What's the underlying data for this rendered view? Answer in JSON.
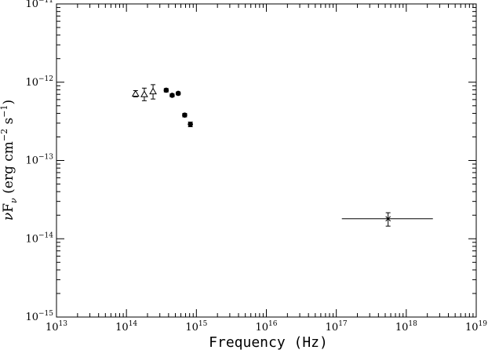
{
  "chart_data": {
    "type": "scatter",
    "title": "",
    "xlabel": "Frequency (Hz)",
    "ylabel": "νFν (erg cm⁻² s⁻¹)",
    "x_scale": "log",
    "y_scale": "log",
    "xlim": [
      10000000000000.0,
      1e+19
    ],
    "ylim": [
      1e-15,
      1e-11
    ],
    "x_ticks": [
      {
        "value": 10000000000000.0,
        "base": "10",
        "exp": "13"
      },
      {
        "value": 100000000000000.0,
        "base": "10",
        "exp": "14"
      },
      {
        "value": 1000000000000000.0,
        "base": "10",
        "exp": "15"
      },
      {
        "value": 1e+16,
        "base": "10",
        "exp": "16"
      },
      {
        "value": 1e+17,
        "base": "10",
        "exp": "17"
      },
      {
        "value": 1e+18,
        "base": "10",
        "exp": "18"
      },
      {
        "value": 1e+19,
        "base": "10",
        "exp": "19"
      }
    ],
    "y_ticks": [
      {
        "value": 1e-15,
        "base": "10",
        "exp": "−15"
      },
      {
        "value": 1e-14,
        "base": "10",
        "exp": "−14"
      },
      {
        "value": 1e-13,
        "base": "10",
        "exp": "−13"
      },
      {
        "value": 1e-12,
        "base": "10",
        "exp": "−12"
      },
      {
        "value": 1e-11,
        "base": "10",
        "exp": "−11"
      }
    ],
    "grid": false,
    "series": [
      {
        "marker": "open-triangle",
        "points": [
          {
            "x": 135000000000000.0,
            "y": 7.1e-13,
            "ylow": 6.5e-13,
            "yhigh": 7.8e-13
          },
          {
            "x": 180000000000000.0,
            "y": 7e-13,
            "ylow": 5.8e-13,
            "yhigh": 8.4e-13
          },
          {
            "x": 240000000000000.0,
            "y": 7.6e-13,
            "ylow": 6.1e-13,
            "yhigh": 9.3e-13
          }
        ]
      },
      {
        "marker": "filled-circle",
        "points": [
          {
            "x": 370000000000000.0,
            "y": 7.9e-13,
            "ylow": 7.5e-13,
            "yhigh": 8.3e-13
          },
          {
            "x": 450000000000000.0,
            "y": 6.8e-13,
            "ylow": 6.5e-13,
            "yhigh": 7.1e-13
          },
          {
            "x": 550000000000000.0,
            "y": 7.2e-13,
            "ylow": 6.9e-13,
            "yhigh": 7.5e-13
          },
          {
            "x": 680000000000000.0,
            "y": 3.8e-13,
            "ylow": 3.6e-13,
            "yhigh": 4e-13
          },
          {
            "x": 820000000000000.0,
            "y": 2.9e-13,
            "ylow": 2.7e-13,
            "yhigh": 3.1e-13
          }
        ]
      },
      {
        "marker": "cross",
        "points": [
          {
            "x": 5.5e+17,
            "y": 1.8e-14,
            "xlow": 1.2e+17,
            "xhigh": 2.4e+18,
            "ylow": 1.45e-14,
            "yhigh": 2.15e-14
          }
        ]
      }
    ]
  }
}
